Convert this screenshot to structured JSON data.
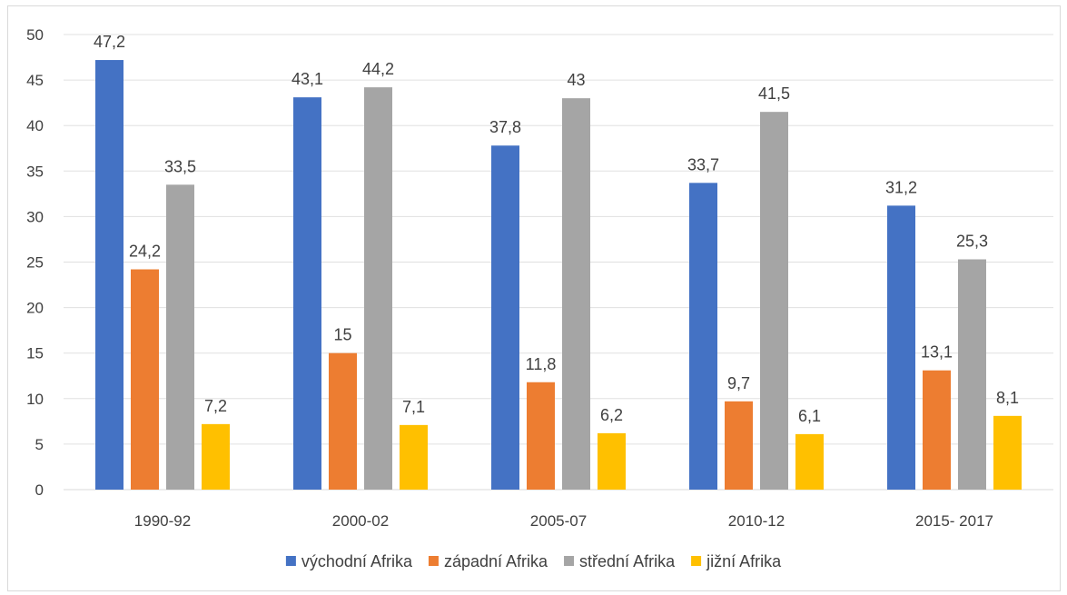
{
  "chart_data": {
    "type": "bar",
    "title": "",
    "xlabel": "",
    "ylabel": "",
    "ylim": [
      0,
      50
    ],
    "yticks": [
      "0",
      "5",
      "10",
      "15",
      "20",
      "25",
      "30",
      "35",
      "40",
      "45",
      "50"
    ],
    "categories": [
      "1990-92",
      "2000-02",
      "2005-07",
      "2010-12",
      "2015- 2017"
    ],
    "grid": true,
    "legend_position": "bottom",
    "series": [
      {
        "name": "východní Afrika",
        "color": "#4472c4",
        "values": [
          47.2,
          43.1,
          37.8,
          33.7,
          31.2
        ],
        "labels": [
          "47,2",
          "43,1",
          "37,8",
          "33,7",
          "31,2"
        ]
      },
      {
        "name": "západní Afrika",
        "color": "#ed7d31",
        "values": [
          24.2,
          15,
          11.8,
          9.7,
          13.1
        ],
        "labels": [
          "24,2",
          "15",
          "11,8",
          "9,7",
          "13,1"
        ]
      },
      {
        "name": "střední Afrika",
        "color": "#a5a5a5",
        "values": [
          33.5,
          44.2,
          43,
          41.5,
          25.3
        ],
        "labels": [
          "33,5",
          "44,2",
          "43",
          "41,5",
          "25,3"
        ]
      },
      {
        "name": "jižní Afrika",
        "color": "#ffc000",
        "values": [
          7.2,
          7.1,
          6.2,
          6.1,
          8.1
        ],
        "labels": [
          "7,2",
          "7,1",
          "6,2",
          "6,1",
          "8,1"
        ]
      }
    ]
  }
}
